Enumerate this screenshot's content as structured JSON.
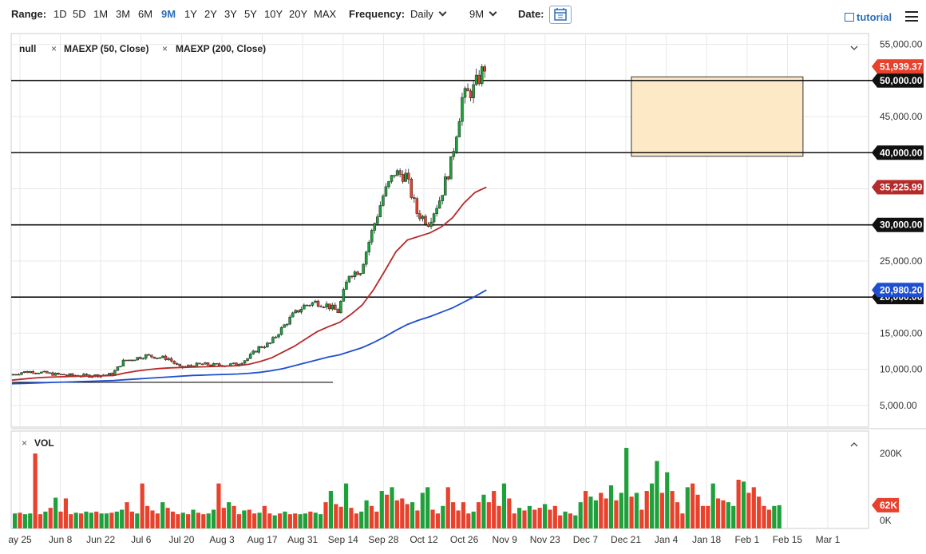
{
  "toolbar": {
    "range_label": "Range:",
    "ranges": [
      "1D",
      "5D",
      "1M",
      "3M",
      "6M",
      "9M",
      "1Y",
      "2Y",
      "3Y",
      "5Y",
      "10Y",
      "20Y",
      "MAX"
    ],
    "active_range": "9M",
    "frequency_label": "Frequency:",
    "frequency_value": "Daily",
    "period_value": "9M",
    "date_label": "Date:",
    "tutorial_label": "tutorial"
  },
  "colors": {
    "up": "#1ea03a",
    "down": "#e8412c",
    "ma50": "#b52a2a",
    "ma200": "#1f4fd1",
    "zone_fill": "#fde9c6",
    "zone_stroke": "#333333",
    "accent": "#2b6fb8"
  },
  "chart_data": {
    "type": "candlestick",
    "legend": {
      "main": "null",
      "ma50": "MAEXP (50, Close)",
      "ma200": "MAEXP (200, Close)",
      "volume": "VOL"
    },
    "x_tick_labels": [
      "ay 25",
      "Jun 8",
      "Jun 22",
      "Jul 6",
      "Jul 20",
      "Aug 3",
      "Aug 17",
      "Aug 31",
      "Sep 14",
      "Sep 28",
      "Oct 12",
      "Oct 26",
      "Nov 9",
      "Nov 23",
      "Dec 7",
      "Dec 21",
      "Jan 4",
      "Jan 18",
      "Feb 1",
      "Feb 15",
      "Mar 1"
    ],
    "y_tick_labels": [
      "55,000.00",
      "45,000.00",
      "25,000.00",
      "15,000.00",
      "10,000.00",
      "5,000.00"
    ],
    "y_ticks": [
      55000,
      45000,
      25000,
      15000,
      10000,
      5000
    ],
    "ylim": [
      2000,
      56500
    ],
    "horizontal_levels": [
      {
        "value": 50000,
        "label": "50,000.00"
      },
      {
        "value": 40000,
        "label": "40,000.00"
      },
      {
        "value": 30000,
        "label": "30,000.00"
      },
      {
        "value": 20000,
        "label": "20,000.00"
      }
    ],
    "last_price": {
      "value": 51939.37,
      "label": "51,939.37"
    },
    "ma50_last": {
      "value": 35225.99,
      "label": "35,225.99"
    },
    "ma200_last": {
      "value": 20980.2,
      "label": "20,980.20"
    },
    "zone": {
      "x_start_index": 46,
      "x_end_index": 56,
      "y_low": 39500,
      "y_high": 50500
    },
    "low_trendline": {
      "x_start_index": 0,
      "x_end_index": 27,
      "value": 8200
    },
    "weekly_closes": [
      9200,
      9600,
      9700,
      9500,
      9300,
      9200,
      9150,
      9100,
      9200,
      9300,
      11100,
      11500,
      11900,
      11700,
      11500,
      10200,
      10500,
      10700,
      10600,
      10600,
      10700,
      11500,
      13000,
      13600,
      15600,
      17500,
      18800,
      19300,
      18900,
      18000,
      23200,
      23700,
      29000,
      34000,
      37200,
      36800,
      31700,
      30400,
      33500,
      38500,
      47500,
      48800,
      51939
    ],
    "ma50_values": [
      8500,
      8650,
      8800,
      8900,
      8950,
      9000,
      9050,
      9050,
      9100,
      9150,
      9500,
      9750,
      9950,
      10100,
      10200,
      10250,
      10300,
      10350,
      10400,
      10450,
      10500,
      10700,
      11100,
      11600,
      12400,
      13200,
      14200,
      15200,
      15900,
      16500,
      17600,
      18900,
      21000,
      23600,
      26300,
      27900,
      28400,
      28900,
      29700,
      31000,
      33000,
      34500,
      35226
    ],
    "ma200_values": [
      8000,
      8050,
      8100,
      8150,
      8200,
      8250,
      8300,
      8350,
      8400,
      8450,
      8550,
      8650,
      8750,
      8850,
      8950,
      9050,
      9150,
      9200,
      9250,
      9300,
      9350,
      9450,
      9600,
      9800,
      10100,
      10500,
      10900,
      11300,
      11700,
      12000,
      12500,
      13000,
      13700,
      14500,
      15400,
      16200,
      16800,
      17300,
      17900,
      18500,
      19300,
      20100,
      20980
    ],
    "volume": {
      "label_max": "200K",
      "label_last": "62K",
      "label_zero": "0K",
      "max": 230,
      "last": 62,
      "values_k": [
        40,
        42,
        38,
        40,
        200,
        38,
        45,
        55,
        82,
        45,
        80,
        38,
        42,
        40,
        45,
        42,
        45,
        40,
        40,
        42,
        45,
        50,
        70,
        45,
        40,
        120,
        60,
        48,
        40,
        70,
        55,
        45,
        38,
        42,
        38,
        50,
        42,
        38,
        40,
        50,
        120,
        55,
        70,
        60,
        38,
        48,
        50,
        40,
        42,
        60,
        40,
        35,
        40,
        45,
        38,
        40,
        38,
        40,
        45,
        42,
        38,
        70,
        100,
        65,
        58,
        120,
        55,
        40,
        45,
        75,
        60,
        45,
        100,
        90,
        110,
        75,
        80,
        65,
        70,
        48,
        95,
        110,
        50,
        40,
        60,
        110,
        70,
        48,
        70,
        40,
        45,
        70,
        90,
        70,
        100,
        60,
        120,
        80,
        40,
        55,
        48,
        60,
        50,
        55,
        65,
        50,
        60,
        35,
        45,
        40,
        35,
        70,
        100,
        85,
        75,
        95,
        80,
        115,
        75,
        95,
        215,
        85,
        95,
        50,
        100,
        120,
        180,
        95,
        150,
        100,
        70,
        40,
        110,
        120,
        90,
        60,
        60,
        120,
        80,
        75,
        70,
        60,
        130,
        125,
        95,
        110,
        85,
        60,
        50,
        60,
        62
      ]
    }
  }
}
